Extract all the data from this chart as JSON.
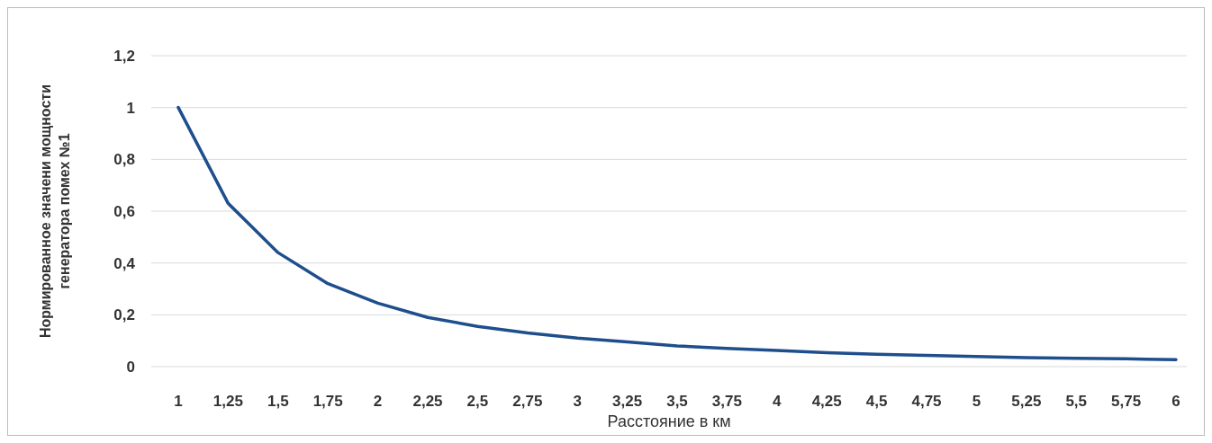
{
  "chart_data": {
    "type": "line",
    "xlabel": "Расстояние в км",
    "ylabel": "Нормированное значени мощности\nгенератора помех №1",
    "categories": [
      "1",
      "1,25",
      "1,5",
      "1,75",
      "2",
      "2,25",
      "2,5",
      "2,75",
      "3",
      "3,25",
      "3,5",
      "3,75",
      "4",
      "4,25",
      "4,5",
      "4,75",
      "5",
      "5,25",
      "5,5",
      "5,75",
      "6"
    ],
    "series": [
      {
        "color": "#1f4e8c",
        "values": [
          1,
          0.63,
          0.44,
          0.32,
          0.245,
          0.19,
          0.155,
          0.13,
          0.11,
          0.095,
          0.08,
          0.07,
          0.062,
          0.054,
          0.048,
          0.043,
          0.039,
          0.035,
          0.032,
          0.03,
          0.027
        ]
      }
    ],
    "ylim": [
      0,
      1.2
    ],
    "yticks": [
      0,
      {
        "value": 0.2,
        "label": "0,2"
      },
      {
        "value": 0.4,
        "label": "0,4"
      },
      {
        "value": 0.6,
        "label": "0,6"
      },
      {
        "value": 0.8,
        "label": "0,8"
      },
      1,
      {
        "value": 1.2,
        "label": "1,2"
      }
    ],
    "grid": "y",
    "marker": "none",
    "line_style": "solid"
  }
}
